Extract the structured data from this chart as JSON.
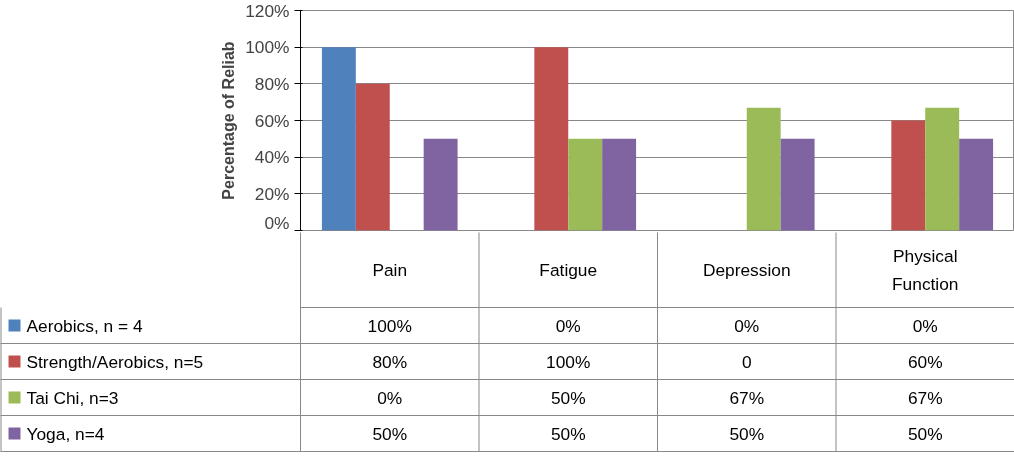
{
  "chart_data": {
    "type": "bar",
    "ylabel": "Percentage of Reliab",
    "categories": [
      "Pain",
      "Fatigue",
      "Depression",
      "Physical Function"
    ],
    "series": [
      {
        "name": "Aerobics, n = 4",
        "color": "#4f81bd",
        "values": [
          100,
          0,
          0,
          0
        ],
        "value_labels": [
          "100%",
          "0%",
          "0%",
          "0%"
        ]
      },
      {
        "name": "Strength/Aerobics, n=5",
        "color": "#c0504d",
        "values": [
          80,
          100,
          0,
          60
        ],
        "value_labels": [
          "80%",
          "100%",
          "0",
          "60%"
        ]
      },
      {
        "name": "Tai Chi, n=3",
        "color": "#9bbb59",
        "values": [
          0,
          50,
          67,
          67
        ],
        "value_labels": [
          "0%",
          "50%",
          "67%",
          "67%"
        ]
      },
      {
        "name": "Yoga, n=4",
        "color": "#8064a2",
        "values": [
          50,
          50,
          50,
          50
        ],
        "value_labels": [
          "50%",
          "50%",
          "50%",
          "50%"
        ]
      }
    ],
    "ylim": [
      0,
      120
    ],
    "yticks": [
      {
        "value": 0,
        "label": "0%"
      },
      {
        "value": 20,
        "label": "20%"
      },
      {
        "value": 40,
        "label": "40%"
      },
      {
        "value": 60,
        "label": "60%"
      },
      {
        "value": 80,
        "label": "80%"
      },
      {
        "value": 100,
        "label": "100%"
      },
      {
        "value": 120,
        "label": "120%"
      }
    ],
    "grid": "y",
    "legend": "bottom"
  }
}
